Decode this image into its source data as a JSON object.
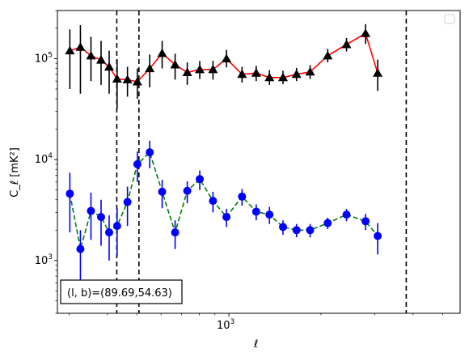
{
  "chart_data": {
    "type": "line",
    "title": "",
    "xlabel": "ℓ",
    "ylabel": "C_ℓ [mK²]",
    "x_scale": "log",
    "y_scale": "log",
    "xlim": [
      275,
      5700
    ],
    "ylim": [
      300,
      300000
    ],
    "x_tick_labels": [
      {
        "value": 1000,
        "base": "10",
        "exp": "3"
      }
    ],
    "y_tick_labels": [
      {
        "value": 1000,
        "base": "10",
        "exp": "3"
      },
      {
        "value": 10000,
        "base": "10",
        "exp": "4"
      },
      {
        "value": 100000,
        "base": "10",
        "exp": "5"
      }
    ],
    "vlines": [
      430,
      508,
      3800
    ],
    "annotation": "(l, b)=(89.69,54.63)",
    "legend": "top-right",
    "series": [
      {
        "color": "#ff0000",
        "marker": "triangle",
        "marker_color": "#000000",
        "errorbar_color": "#000000",
        "linestyle": "solid",
        "points": [
          {
            "x": 302,
            "y": 120000,
            "lo": 50000,
            "hi": 195000
          },
          {
            "x": 327,
            "y": 130000,
            "lo": 45000,
            "hi": 215000
          },
          {
            "x": 354,
            "y": 107000,
            "lo": 60000,
            "hi": 165000
          },
          {
            "x": 382,
            "y": 97000,
            "lo": 55000,
            "hi": 150000
          },
          {
            "x": 406,
            "y": 83000,
            "lo": 45000,
            "hi": 120000
          },
          {
            "x": 431,
            "y": 63000,
            "lo": 32000,
            "hi": 98000
          },
          {
            "x": 466,
            "y": 62000,
            "lo": 42000,
            "hi": 83000
          },
          {
            "x": 502,
            "y": 59000,
            "lo": 40000,
            "hi": 80000
          },
          {
            "x": 551,
            "y": 80000,
            "lo": 52000,
            "hi": 110000
          },
          {
            "x": 605,
            "y": 113000,
            "lo": 80000,
            "hi": 150000
          },
          {
            "x": 667,
            "y": 87000,
            "lo": 62000,
            "hi": 112000
          },
          {
            "x": 731,
            "y": 73000,
            "lo": 55000,
            "hi": 92000
          },
          {
            "x": 803,
            "y": 78000,
            "lo": 63000,
            "hi": 95000
          },
          {
            "x": 887,
            "y": 78000,
            "lo": 62000,
            "hi": 95000
          },
          {
            "x": 982,
            "y": 100000,
            "lo": 82000,
            "hi": 122000
          },
          {
            "x": 1104,
            "y": 70000,
            "lo": 58000,
            "hi": 83000
          },
          {
            "x": 1228,
            "y": 72000,
            "lo": 60000,
            "hi": 85000
          },
          {
            "x": 1357,
            "y": 65000,
            "lo": 55000,
            "hi": 77000
          },
          {
            "x": 1503,
            "y": 65000,
            "lo": 56000,
            "hi": 76000
          },
          {
            "x": 1664,
            "y": 70000,
            "lo": 60000,
            "hi": 81000
          },
          {
            "x": 1843,
            "y": 74000,
            "lo": 63000,
            "hi": 86000
          },
          {
            "x": 2104,
            "y": 107000,
            "lo": 92000,
            "hi": 125000
          },
          {
            "x": 2424,
            "y": 138000,
            "lo": 118000,
            "hi": 160000
          },
          {
            "x": 2797,
            "y": 178000,
            "lo": 140000,
            "hi": 220000
          },
          {
            "x": 3065,
            "y": 72000,
            "lo": 48000,
            "hi": 98000
          }
        ]
      },
      {
        "color": "#008000",
        "marker": "circle",
        "marker_color": "#0000ff",
        "errorbar_color": "#0000ff",
        "linestyle": "dashed",
        "points": [
          {
            "x": 302,
            "y": 4600,
            "lo": 1900,
            "hi": 7400
          },
          {
            "x": 327,
            "y": 1300,
            "lo": 600,
            "hi": 2000
          },
          {
            "x": 354,
            "y": 3100,
            "lo": 1600,
            "hi": 4700
          },
          {
            "x": 382,
            "y": 2700,
            "lo": 1400,
            "hi": 4000
          },
          {
            "x": 406,
            "y": 1900,
            "lo": 1000,
            "hi": 2800
          },
          {
            "x": 431,
            "y": 2200,
            "lo": 1100,
            "hi": 3300
          },
          {
            "x": 466,
            "y": 3800,
            "lo": 2200,
            "hi": 5400
          },
          {
            "x": 502,
            "y": 9000,
            "lo": 6000,
            "hi": 12000
          },
          {
            "x": 551,
            "y": 11800,
            "lo": 8200,
            "hi": 15400
          },
          {
            "x": 605,
            "y": 4800,
            "lo": 3300,
            "hi": 6300
          },
          {
            "x": 667,
            "y": 1900,
            "lo": 1300,
            "hi": 2500
          },
          {
            "x": 731,
            "y": 4900,
            "lo": 3700,
            "hi": 6100
          },
          {
            "x": 803,
            "y": 6400,
            "lo": 5000,
            "hi": 7800
          },
          {
            "x": 887,
            "y": 3900,
            "lo": 3000,
            "hi": 4800
          },
          {
            "x": 982,
            "y": 2700,
            "lo": 2150,
            "hi": 3250
          },
          {
            "x": 1104,
            "y": 4300,
            "lo": 3500,
            "hi": 5100
          },
          {
            "x": 1228,
            "y": 3050,
            "lo": 2500,
            "hi": 3600
          },
          {
            "x": 1357,
            "y": 2850,
            "lo": 2300,
            "hi": 3400
          },
          {
            "x": 1503,
            "y": 2150,
            "lo": 1800,
            "hi": 2500
          },
          {
            "x": 1664,
            "y": 2000,
            "lo": 1700,
            "hi": 2300
          },
          {
            "x": 1843,
            "y": 2000,
            "lo": 1700,
            "hi": 2300
          },
          {
            "x": 2104,
            "y": 2350,
            "lo": 2050,
            "hi": 2650
          },
          {
            "x": 2424,
            "y": 2850,
            "lo": 2450,
            "hi": 3250
          },
          {
            "x": 2797,
            "y": 2450,
            "lo": 2000,
            "hi": 2900
          },
          {
            "x": 3065,
            "y": 1750,
            "lo": 1150,
            "hi": 2350
          }
        ]
      }
    ]
  }
}
